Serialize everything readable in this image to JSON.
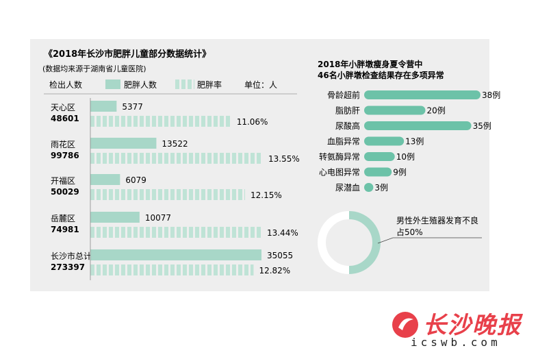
{
  "chart_data": [
    {
      "type": "bar",
      "title": "《2018年长沙市肥胖儿童部分数据统计》",
      "subtitle": "(数据均来源于湖南省儿童医院)",
      "header_label": "检出人数",
      "legend": [
        "肥胖人数",
        "肥胖率"
      ],
      "unit": "单位：人",
      "categories": [
        {
          "name": "天心区",
          "total": "48601"
        },
        {
          "name": "雨花区",
          "total": "99786"
        },
        {
          "name": "开福区",
          "total": "50029"
        },
        {
          "name": "岳麓区",
          "total": "74981"
        },
        {
          "name": "长沙市总计",
          "total": "273397"
        }
      ],
      "series": [
        {
          "name": "肥胖人数",
          "values": [
            5377,
            13522,
            6079,
            10077,
            35055
          ],
          "labels": [
            "5377",
            "13522",
            "6079",
            "10077",
            "35055"
          ]
        },
        {
          "name": "肥胖率",
          "values": [
            11.06,
            13.55,
            12.15,
            13.44,
            12.82
          ],
          "labels": [
            "11.06%",
            "13.55%",
            "12.15%",
            "13.44%",
            "12.82%"
          ]
        }
      ],
      "colors": {
        "solid": "#a8d7c8",
        "striped": "#bfe3d6",
        "stripe_gap": "#f4f9f7"
      }
    },
    {
      "type": "bar",
      "orientation": "horizontal",
      "title_lines": [
        "2018年小胖墩瘦身夏令营中",
        "46名小胖墩检查结果存在多项异常"
      ],
      "categories": [
        "骨龄超前",
        "脂肪肝",
        "尿酸高",
        "血脂异常",
        "转氨酶异常",
        "心电图异常",
        "尿潜血"
      ],
      "values": [
        38,
        20,
        35,
        13,
        10,
        9,
        3
      ],
      "value_labels": [
        "38例",
        "20例",
        "35例",
        "13例",
        "10例",
        "9例",
        "3例"
      ],
      "color": "#6cc2a8"
    },
    {
      "type": "pie",
      "slices": [
        {
          "label": "男性外生殖器发育不良占50%",
          "value": 50,
          "color": "#a8d7c8"
        },
        {
          "label": "",
          "value": 50,
          "color": "#ffffff"
        }
      ],
      "annotation_lines": [
        "男性外生殖器发育不良",
        "占50%"
      ]
    }
  ],
  "logo": {
    "text": "长沙晚报",
    "url": "icswb.com",
    "color": "#e8404a"
  }
}
